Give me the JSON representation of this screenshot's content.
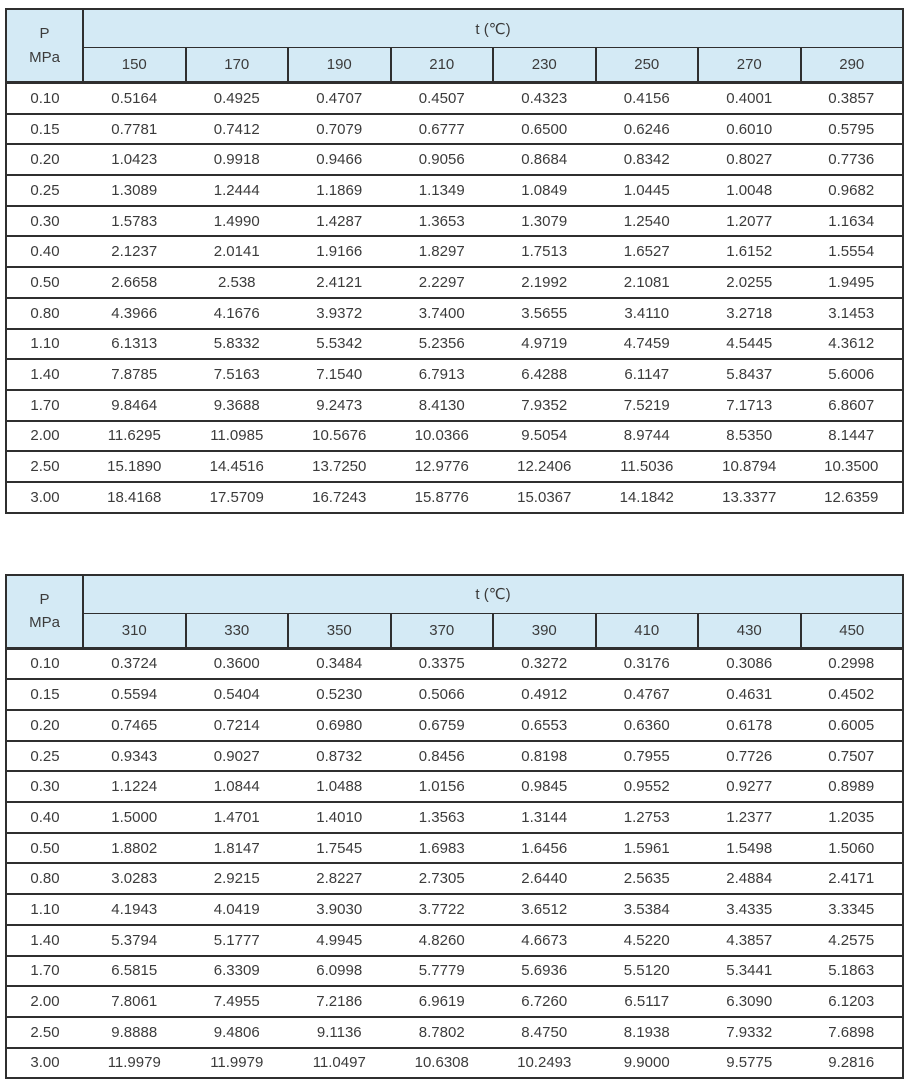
{
  "colors": {
    "header_bg": "#d4eaf5",
    "border": "#2f2f2f",
    "text": "#3b3b3b"
  },
  "tables": [
    {
      "corner_line1": "P",
      "corner_line2": "MPa",
      "span_header": "t  (℃)",
      "temperatures": [
        "150",
        "170",
        "190",
        "210",
        "230",
        "250",
        "270",
        "290"
      ],
      "rows": [
        {
          "p": "0.10",
          "values": [
            "0.5164",
            "0.4925",
            "0.4707",
            "0.4507",
            "0.4323",
            "0.4156",
            "0.4001",
            "0.3857"
          ]
        },
        {
          "p": "0.15",
          "values": [
            "0.7781",
            "0.7412",
            "0.7079",
            "0.6777",
            "0.6500",
            "0.6246",
            "0.6010",
            "0.5795"
          ]
        },
        {
          "p": "0.20",
          "values": [
            "1.0423",
            "0.9918",
            "0.9466",
            "0.9056",
            "0.8684",
            "0.8342",
            "0.8027",
            "0.7736"
          ]
        },
        {
          "p": "0.25",
          "values": [
            "1.3089",
            "1.2444",
            "1.1869",
            "1.1349",
            "1.0849",
            "1.0445",
            "1.0048",
            "0.9682"
          ]
        },
        {
          "p": "0.30",
          "values": [
            "1.5783",
            "1.4990",
            "1.4287",
            "1.3653",
            "1.3079",
            "1.2540",
            "1.2077",
            "1.1634"
          ]
        },
        {
          "p": "0.40",
          "values": [
            "2.1237",
            "2.0141",
            "1.9166",
            "1.8297",
            "1.7513",
            "1.6527",
            "1.6152",
            "1.5554"
          ]
        },
        {
          "p": "0.50",
          "values": [
            "2.6658",
            "2.538",
            "2.4121",
            "2.2297",
            "2.1992",
            "2.1081",
            "2.0255",
            "1.9495"
          ]
        },
        {
          "p": "0.80",
          "values": [
            "4.3966",
            "4.1676",
            "3.9372",
            "3.7400",
            "3.5655",
            "3.4110",
            "3.2718",
            "3.1453"
          ]
        },
        {
          "p": "1.10",
          "values": [
            "6.1313",
            "5.8332",
            "5.5342",
            "5.2356",
            "4.9719",
            "4.7459",
            "4.5445",
            "4.3612"
          ]
        },
        {
          "p": "1.40",
          "values": [
            "7.8785",
            "7.5163",
            "7.1540",
            "6.7913",
            "6.4288",
            "6.1147",
            "5.8437",
            "5.6006"
          ]
        },
        {
          "p": "1.70",
          "values": [
            "9.8464",
            "9.3688",
            "9.2473",
            "8.4130",
            "7.9352",
            "7.5219",
            "7.1713",
            "6.8607"
          ]
        },
        {
          "p": "2.00",
          "values": [
            "11.6295",
            "11.0985",
            "10.5676",
            "10.0366",
            "9.5054",
            "8.9744",
            "8.5350",
            "8.1447"
          ]
        },
        {
          "p": "2.50",
          "values": [
            "15.1890",
            "14.4516",
            "13.7250",
            "12.9776",
            "12.2406",
            "11.5036",
            "10.8794",
            "10.3500"
          ]
        },
        {
          "p": "3.00",
          "values": [
            "18.4168",
            "17.5709",
            "16.7243",
            "15.8776",
            "15.0367",
            "14.1842",
            "13.3377",
            "12.6359"
          ]
        }
      ]
    },
    {
      "corner_line1": "P",
      "corner_line2": "MPa",
      "span_header": "t  (℃)",
      "temperatures": [
        "310",
        "330",
        "350",
        "370",
        "390",
        "410",
        "430",
        "450"
      ],
      "rows": [
        {
          "p": "0.10",
          "values": [
            "0.3724",
            "0.3600",
            "0.3484",
            "0.3375",
            "0.3272",
            "0.3176",
            "0.3086",
            "0.2998"
          ]
        },
        {
          "p": "0.15",
          "values": [
            "0.5594",
            "0.5404",
            "0.5230",
            "0.5066",
            "0.4912",
            "0.4767",
            "0.4631",
            "0.4502"
          ]
        },
        {
          "p": "0.20",
          "values": [
            "0.7465",
            "0.7214",
            "0.6980",
            "0.6759",
            "0.6553",
            "0.6360",
            "0.6178",
            "0.6005"
          ]
        },
        {
          "p": "0.25",
          "values": [
            "0.9343",
            "0.9027",
            "0.8732",
            "0.8456",
            "0.8198",
            "0.7955",
            "0.7726",
            "0.7507"
          ]
        },
        {
          "p": "0.30",
          "values": [
            "1.1224",
            "1.0844",
            "1.0488",
            "1.0156",
            "0.9845",
            "0.9552",
            "0.9277",
            "0.8989"
          ]
        },
        {
          "p": "0.40",
          "values": [
            "1.5000",
            "1.4701",
            "1.4010",
            "1.3563",
            "1.3144",
            "1.2753",
            "1.2377",
            "1.2035"
          ]
        },
        {
          "p": "0.50",
          "values": [
            "1.8802",
            "1.8147",
            "1.7545",
            "1.6983",
            "1.6456",
            "1.5961",
            "1.5498",
            "1.5060"
          ]
        },
        {
          "p": "0.80",
          "values": [
            "3.0283",
            "2.9215",
            "2.8227",
            "2.7305",
            "2.6440",
            "2.5635",
            "2.4884",
            "2.4171"
          ]
        },
        {
          "p": "1.10",
          "values": [
            "4.1943",
            "4.0419",
            "3.9030",
            "3.7722",
            "3.6512",
            "3.5384",
            "3.4335",
            "3.3345"
          ]
        },
        {
          "p": "1.40",
          "values": [
            "5.3794",
            "5.1777",
            "4.9945",
            "4.8260",
            "4.6673",
            "4.5220",
            "4.3857",
            "4.2575"
          ]
        },
        {
          "p": "1.70",
          "values": [
            "6.5815",
            "6.3309",
            "6.0998",
            "5.7779",
            "5.6936",
            "5.5120",
            "5.3441",
            "5.1863"
          ]
        },
        {
          "p": "2.00",
          "values": [
            "7.8061",
            "7.4955",
            "7.2186",
            "6.9619",
            "6.7260",
            "6.5117",
            "6.3090",
            "6.1203"
          ]
        },
        {
          "p": "2.50",
          "values": [
            "9.8888",
            "9.4806",
            "9.1136",
            "8.7802",
            "8.4750",
            "8.1938",
            "7.9332",
            "7.6898"
          ]
        },
        {
          "p": "3.00",
          "values": [
            "11.9979",
            "11.9979",
            "11.0497",
            "10.6308",
            "10.2493",
            "9.9000",
            "9.5775",
            "9.2816"
          ]
        }
      ]
    }
  ]
}
